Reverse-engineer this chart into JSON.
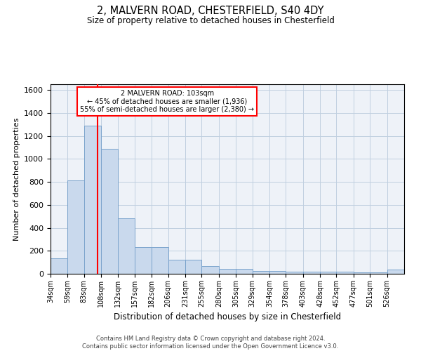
{
  "title1": "2, MALVERN ROAD, CHESTERFIELD, S40 4DY",
  "title2": "Size of property relative to detached houses in Chesterfield",
  "xlabel": "Distribution of detached houses by size in Chesterfield",
  "ylabel": "Number of detached properties",
  "footer1": "Contains HM Land Registry data © Crown copyright and database right 2024.",
  "footer2": "Contains public sector information licensed under the Open Government Licence v3.0.",
  "annotation_line1": "2 MALVERN ROAD: 103sqm",
  "annotation_line2": "← 45% of detached houses are smaller (1,936)",
  "annotation_line3": "55% of semi-detached houses are larger (2,380) →",
  "bar_color": "#c9d9ed",
  "bar_edge_color": "#7aa3cc",
  "red_line_x": 103,
  "categories": [
    "34sqm",
    "59sqm",
    "83sqm",
    "108sqm",
    "132sqm",
    "157sqm",
    "182sqm",
    "206sqm",
    "231sqm",
    "255sqm",
    "280sqm",
    "305sqm",
    "329sqm",
    "354sqm",
    "378sqm",
    "403sqm",
    "428sqm",
    "452sqm",
    "477sqm",
    "501sqm",
    "526sqm"
  ],
  "bin_edges": [
    34,
    59,
    83,
    108,
    132,
    157,
    182,
    206,
    231,
    255,
    280,
    305,
    329,
    354,
    378,
    403,
    428,
    452,
    477,
    501,
    526,
    551
  ],
  "values": [
    135,
    810,
    1290,
    1090,
    480,
    235,
    235,
    125,
    125,
    70,
    40,
    40,
    25,
    25,
    20,
    20,
    20,
    20,
    10,
    10,
    35
  ],
  "ylim": [
    0,
    1650
  ],
  "yticks": [
    0,
    200,
    400,
    600,
    800,
    1000,
    1200,
    1400,
    1600
  ],
  "annotation_box_color": "white",
  "annotation_box_edge_color": "red",
  "grid_color": "#c0cfe0",
  "bg_color": "#eef2f8"
}
